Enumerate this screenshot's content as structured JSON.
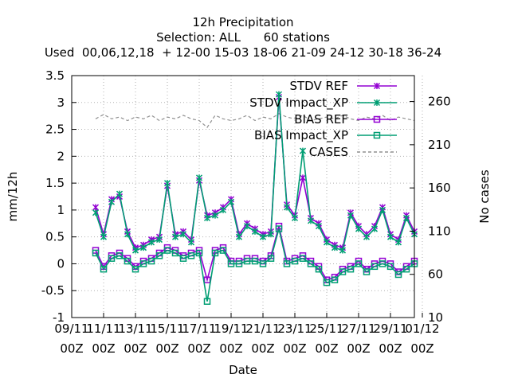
{
  "chart_data": {
    "type": "line",
    "title": [
      "12h Precipitation",
      "Selection: ALL      60 stations",
      "Used  00,06,12,18  + 12-00 15-03 18-06 21-09 24-12 30-18 36-24"
    ],
    "xlabel": "Date",
    "ylabel": "mm/12h",
    "y2label": "No cases",
    "xlim": [
      0,
      21.5
    ],
    "ylim": [
      -1,
      3.5
    ],
    "y2lim": [
      10,
      290
    ],
    "grid": true,
    "legend_position": "top-right",
    "x_ticks": [
      {
        "pos": 0,
        "l1": "09/11",
        "l2": "00Z"
      },
      {
        "pos": 2,
        "l1": "11/11",
        "l2": "00Z"
      },
      {
        "pos": 4,
        "l1": "13/11",
        "l2": "00Z"
      },
      {
        "pos": 6,
        "l1": "15/11",
        "l2": "00Z"
      },
      {
        "pos": 8,
        "l1": "17/11",
        "l2": "00Z"
      },
      {
        "pos": 10,
        "l1": "19/11",
        "l2": "00Z"
      },
      {
        "pos": 12,
        "l1": "21/11",
        "l2": "00Z"
      },
      {
        "pos": 14,
        "l1": "23/11",
        "l2": "00Z"
      },
      {
        "pos": 16,
        "l1": "25/11",
        "l2": "00Z"
      },
      {
        "pos": 18,
        "l1": "27/11",
        "l2": "00Z"
      },
      {
        "pos": 20,
        "l1": "29/11",
        "l2": "00Z"
      },
      {
        "pos": 22,
        "l1": "01/12",
        "l2": "00Z"
      }
    ],
    "y_ticks": [
      "-1",
      "-0.5",
      "0",
      "0.5",
      "1",
      "1.5",
      "2",
      "2.5",
      "3",
      "3.5"
    ],
    "y2_ticks": [
      "10",
      "60",
      "110",
      "160",
      "210",
      "260"
    ],
    "x": [
      1.5,
      2.0,
      2.5,
      3.0,
      3.5,
      4.0,
      4.5,
      5.0,
      5.5,
      6.0,
      6.5,
      7.0,
      7.5,
      8.0,
      8.5,
      9.0,
      9.5,
      10.0,
      10.5,
      11.0,
      11.5,
      12.0,
      12.5,
      13.0,
      13.5,
      14.0,
      14.5,
      15.0,
      15.5,
      16.0,
      16.5,
      17.0,
      17.5,
      18.0,
      18.5,
      19.0,
      19.5,
      20.0,
      20.5,
      21.0,
      21.5
    ],
    "series": [
      {
        "name": "STDV REF",
        "color": "#9400d3",
        "marker": "x",
        "values": [
          1.05,
          0.55,
          1.2,
          1.25,
          0.6,
          0.3,
          0.35,
          0.45,
          0.5,
          1.45,
          0.55,
          0.6,
          0.45,
          1.55,
          0.9,
          0.95,
          1.05,
          1.2,
          0.55,
          0.75,
          0.65,
          0.55,
          0.6,
          3.1,
          1.1,
          0.9,
          1.6,
          0.85,
          0.75,
          0.45,
          0.35,
          0.3,
          0.95,
          0.7,
          0.55,
          0.7,
          1.05,
          0.55,
          0.45,
          0.9,
          0.6
        ]
      },
      {
        "name": "STDV Impact_XP",
        "color": "#009e73",
        "marker": "x",
        "values": [
          0.95,
          0.5,
          1.15,
          1.3,
          0.55,
          0.25,
          0.3,
          0.4,
          0.45,
          1.5,
          0.5,
          0.55,
          0.4,
          1.6,
          0.85,
          0.9,
          1.0,
          1.15,
          0.5,
          0.7,
          0.6,
          0.5,
          0.55,
          3.15,
          1.05,
          0.85,
          2.1,
          0.8,
          0.7,
          0.4,
          0.3,
          0.25,
          0.9,
          0.65,
          0.5,
          0.65,
          1.0,
          0.5,
          0.4,
          0.85,
          0.55
        ]
      },
      {
        "name": "BIAS REF",
        "color": "#9400d3",
        "marker": "square",
        "values": [
          0.25,
          -0.05,
          0.15,
          0.2,
          0.1,
          -0.05,
          0.05,
          0.1,
          0.2,
          0.3,
          0.25,
          0.15,
          0.2,
          0.25,
          -0.3,
          0.25,
          0.3,
          0.05,
          0.05,
          0.1,
          0.1,
          0.05,
          0.15,
          0.7,
          0.05,
          0.1,
          0.15,
          0.05,
          -0.05,
          -0.3,
          -0.25,
          -0.1,
          -0.05,
          0.05,
          -0.1,
          0.0,
          0.05,
          0.0,
          -0.15,
          -0.05,
          0.05
        ]
      },
      {
        "name": "BIAS Impact_XP",
        "color": "#009e73",
        "marker": "square",
        "values": [
          0.2,
          -0.1,
          0.1,
          0.15,
          0.05,
          -0.1,
          0.0,
          0.05,
          0.15,
          0.25,
          0.2,
          0.1,
          0.15,
          0.2,
          -0.7,
          0.2,
          0.25,
          0.0,
          0.0,
          0.05,
          0.05,
          0.0,
          0.1,
          0.65,
          0.0,
          0.05,
          0.1,
          0.0,
          -0.1,
          -0.35,
          -0.3,
          -0.15,
          -0.1,
          0.0,
          -0.15,
          -0.05,
          0.0,
          -0.05,
          -0.2,
          -0.1,
          0.0
        ]
      },
      {
        "name": "CASES",
        "color": "#909090",
        "marker": "none",
        "axis": "y2",
        "values": [
          240,
          245,
          240,
          242,
          238,
          242,
          240,
          244,
          238,
          242,
          240,
          244,
          240,
          238,
          230,
          244,
          240,
          238,
          240,
          244,
          238,
          242,
          240,
          246,
          242,
          240,
          244,
          238,
          240,
          242,
          240,
          244,
          240,
          238,
          242,
          240,
          244,
          238,
          242,
          240,
          238
        ]
      }
    ]
  }
}
